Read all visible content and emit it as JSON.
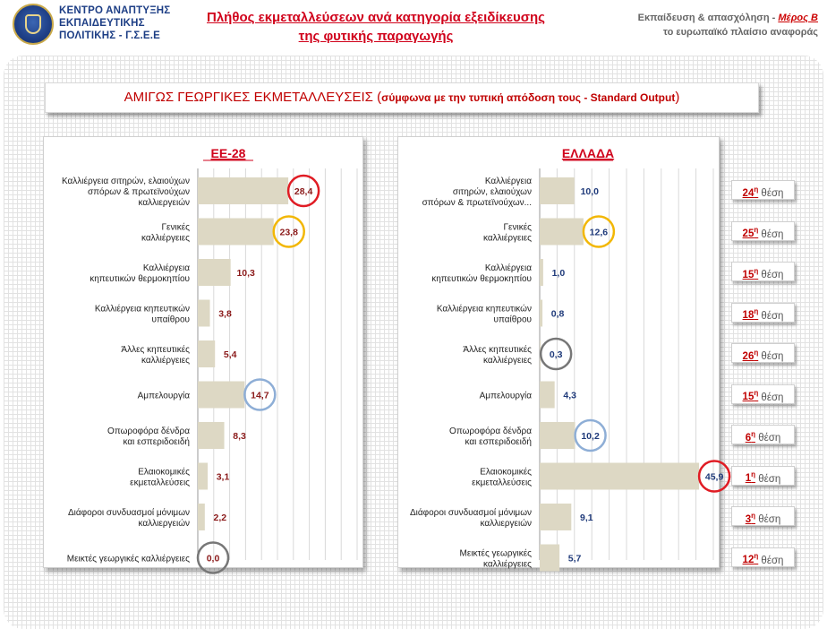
{
  "header": {
    "logo_lines": [
      "ΚΕΝΤΡΟ ΑΝΑΠΤΥΞΗΣ",
      "ΕΚΠΑΙΔΕΥΤΙΚΗΣ",
      "ΠΟΛΙΤΙΚΗΣ - Γ.Σ.Ε.Ε"
    ],
    "title_lines": [
      "Πλήθος εκμεταλλεύσεων  ανά κατηγορία εξειδίκευσης",
      "της φυτικής παραγωγής"
    ],
    "right_line1_prefix": "Εκπαίδευση & απασχόληση - ",
    "right_line1_part": "Μέρος Β",
    "right_line2": "το ευρωπαϊκό πλαίσιο αναφοράς"
  },
  "banner": {
    "main": "ΑΜΙΓΩΣ ΓΕΩΡΓΙΚΕΣ ΕΚΜΕΤΑΛΛΕΥΣΕΙΣ (",
    "sub": "σύμφωνα με την τυπική απόδοση τους - Standard Output",
    "close": ")"
  },
  "colors": {
    "bar": "#ddd8c4",
    "eu_value": "#8b1a1a",
    "gr_value": "#1f3a7a",
    "title_red": "#d0021b",
    "circle_red": "#e01c24",
    "circle_yellow": "#f2b705",
    "circle_blue": "#8eaed6",
    "circle_gray": "#777777"
  },
  "chart_data": [
    {
      "type": "bar",
      "orientation": "horizontal",
      "title": "ΕΕ-28",
      "categories": [
        [
          "Καλλιέργεια σιτηρών, ελαιούχων",
          "σπόρων & πρωτεϊνούχων",
          "καλλιεργειών"
        ],
        [
          "Γενικές",
          "καλλιέργειες"
        ],
        [
          "Καλλιέργεια",
          "κηπευτικών θερμοκηπίου"
        ],
        [
          "Καλλιέργεια κηπευτικών",
          "υπαίθρου"
        ],
        [
          "Άλλες κηπευτικές",
          "καλλιέργειες"
        ],
        [
          "Αμπελουργία"
        ],
        [
          "Οπωροφόρα δένδρα",
          "και εσπεριδοειδή"
        ],
        [
          "Ελαιοκομικές",
          "εκμεταλλεύσεις"
        ],
        [
          "Διάφοροι συνδυασμοί μόνιμων",
          "καλλιεργειών"
        ],
        [
          "Μεικτές γεωργικές καλλιέργειες"
        ]
      ],
      "values": [
        28.4,
        23.8,
        10.3,
        3.8,
        5.4,
        14.7,
        8.3,
        3.1,
        2.2,
        0.0
      ],
      "value_labels": [
        "28,4",
        "23,8",
        "10,3",
        "3,8",
        "5,4",
        "14,7",
        "8,3",
        "3,1",
        "2,2",
        "0,0"
      ],
      "highlight": [
        "red",
        "yellow",
        "",
        "",
        "",
        "blue",
        "",
        "",
        "",
        "gray"
      ],
      "xlim": [
        0,
        50
      ],
      "grid": true
    },
    {
      "type": "bar",
      "orientation": "horizontal",
      "title": "ΕΛΛΑΔΑ",
      "categories": [
        [
          "Καλλιέργεια",
          "σιτηρών, ελαιούχων",
          "σπόρων & πρωτεϊνούχων..."
        ],
        [
          "Γενικές",
          "καλλιέργειες"
        ],
        [
          "Καλλιέργεια",
          "κηπευτικών θερμοκηπίου"
        ],
        [
          "Καλλιέργεια κηπευτικών",
          "υπαίθρου"
        ],
        [
          "Άλλες κηπευτικές",
          "καλλιέργειες"
        ],
        [
          "Αμπελουργία"
        ],
        [
          "Οπωροφόρα δένδρα",
          "και εσπεριδοειδή"
        ],
        [
          "Ελαιοκομικές",
          "εκμεταλλεύσεις"
        ],
        [
          "Διάφοροι συνδυασμοί μόνιμων",
          "καλλιεργειών"
        ],
        [
          "Μεικτές γεωργικές",
          "καλλιέργειες"
        ]
      ],
      "values": [
        10.0,
        12.6,
        1.0,
        0.8,
        0.3,
        4.3,
        10.2,
        45.9,
        9.1,
        5.7
      ],
      "value_labels": [
        "10,0",
        "12,6",
        "1,0",
        "0,8",
        "0,3",
        "4,3",
        "10,2",
        "45,9",
        "9,1",
        "5,7"
      ],
      "highlight": [
        "",
        "yellow",
        "",
        "",
        "gray",
        "",
        "blue",
        "red",
        "",
        ""
      ],
      "xlim": [
        0,
        50
      ],
      "grid": true
    }
  ],
  "ranks": [
    {
      "num": "24",
      "sup": "η",
      "word": "θέση"
    },
    {
      "num": "25",
      "sup": "η",
      "word": "θέση"
    },
    {
      "num": "15",
      "sup": "η",
      "word": "θέση"
    },
    {
      "num": "18",
      "sup": "η",
      "word": "θέση"
    },
    {
      "num": "26",
      "sup": "η",
      "word": "θέση"
    },
    {
      "num": "15",
      "sup": "η",
      "word": "θέση"
    },
    {
      "num": "6",
      "sup": "η",
      "word": "θέση"
    },
    {
      "num": "1",
      "sup": "η",
      "word": "θέση"
    },
    {
      "num": "3",
      "sup": "η",
      "word": "θέση"
    },
    {
      "num": "12",
      "sup": "η",
      "word": "θέση"
    }
  ]
}
